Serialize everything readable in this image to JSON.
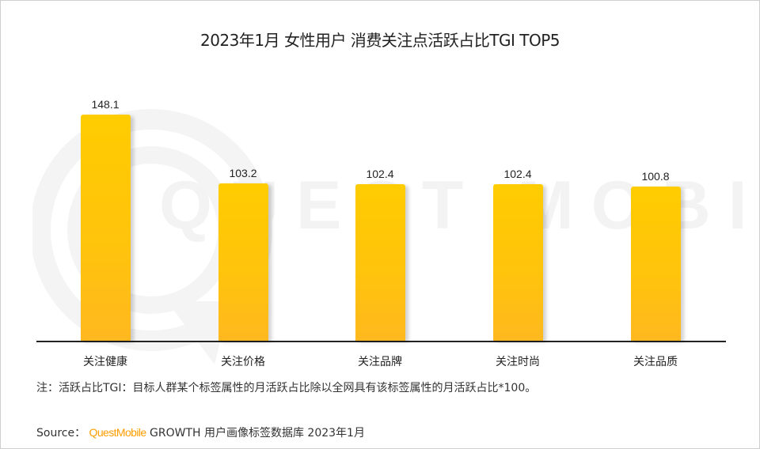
{
  "chart_data": {
    "type": "bar",
    "title": "2023年1月 女性用户 消费关注点活跃占比TGI TOP5",
    "categories": [
      "关注健康",
      "关注价格",
      "关注品牌",
      "关注时尚",
      "关注品质"
    ],
    "values": [
      148.1,
      103.2,
      102.4,
      102.4,
      100.8
    ],
    "value_labels": [
      "148.1",
      "103.2",
      "102.4",
      "102.4",
      "100.8"
    ],
    "xlabel": "",
    "ylabel": "",
    "ylim": [
      0,
      160
    ],
    "grid": false,
    "legend": null,
    "bar_color": "#ffc30d"
  },
  "watermark": {
    "text": "QUEST MOBILE"
  },
  "footer": {
    "note": "注：活跃占比TGI：目标人群某个标签属性的月活跃占比除以全网具有该标签属性的月活跃占比*100。",
    "source_label": "Source：",
    "source_brand": "QuestMobile",
    "source_rest": " GROWTH 用户画像标签数据库 2023年1月",
    "brand_color": "#ff9d00"
  }
}
